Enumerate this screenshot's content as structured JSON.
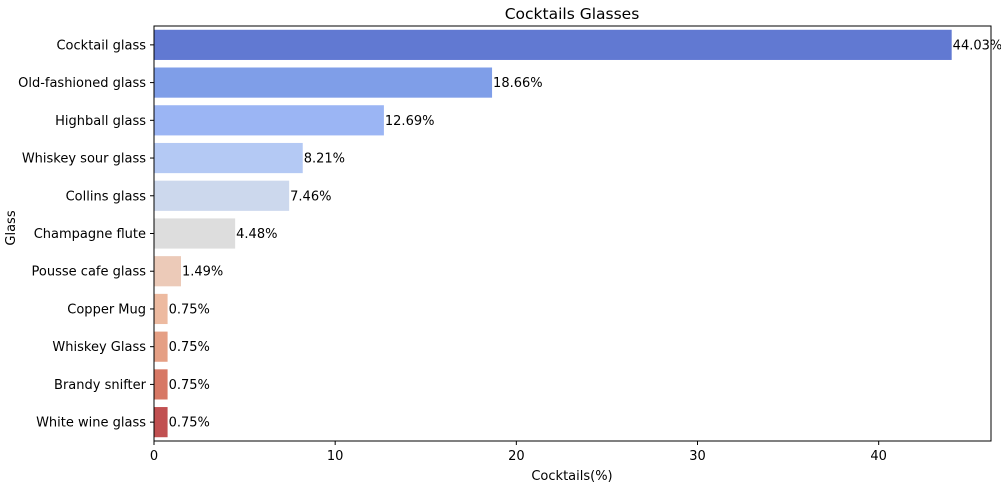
{
  "chart_data": {
    "type": "bar",
    "orientation": "horizontal",
    "title": "Cocktails Glasses",
    "xlabel": "Cocktails(%)",
    "ylabel": "Glass",
    "xlim": [
      0,
      46.2
    ],
    "xticks": [
      0,
      10,
      20,
      30,
      40
    ],
    "grid": false,
    "categories": [
      "Cocktail glass",
      "Old-fashioned glass",
      "Highball glass",
      "Whiskey sour glass",
      "Collins glass",
      "Champagne flute",
      "Pousse cafe glass",
      "Copper Mug",
      "Whiskey Glass",
      "Brandy snifter",
      "White wine glass"
    ],
    "values": [
      44.03,
      18.66,
      12.69,
      8.21,
      7.46,
      4.48,
      1.49,
      0.75,
      0.75,
      0.75,
      0.75
    ],
    "value_labels": [
      "44.03%",
      "18.66%",
      "12.69%",
      "8.21%",
      "7.46%",
      "4.48%",
      "1.49%",
      "0.75%",
      "0.75%",
      "0.75%",
      "0.75%"
    ],
    "colors": [
      "#6179d2",
      "#7f9ee8",
      "#9bb5f4",
      "#b4c9f4",
      "#ccd8ed",
      "#dddddd",
      "#eccab8",
      "#edbaa0",
      "#e59f84",
      "#d77865",
      "#c15051"
    ]
  }
}
